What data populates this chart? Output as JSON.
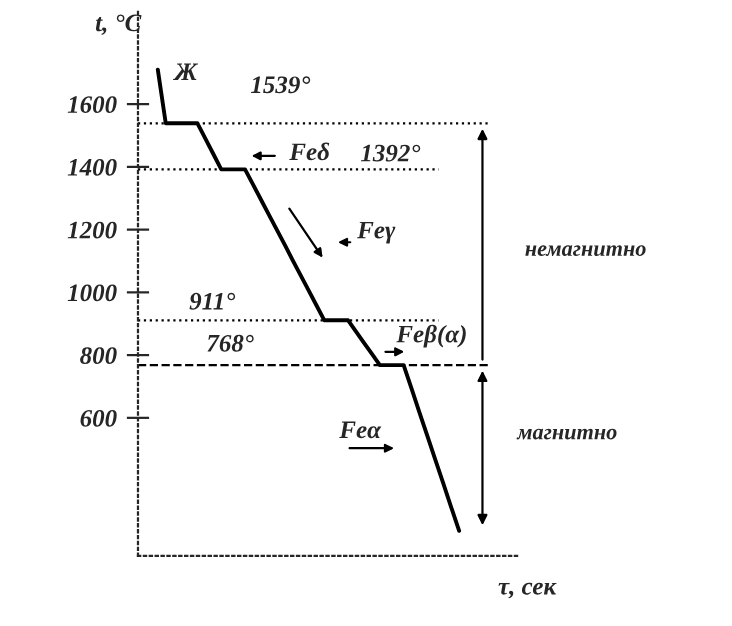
{
  "chart_data": {
    "type": "line",
    "ylabel": "t, °C",
    "xlabel": "τ, сек",
    "categories": [
      null,
      null,
      null,
      null,
      null,
      null,
      null,
      null,
      null,
      null,
      null,
      null,
      null,
      null,
      null,
      null,
      null,
      null,
      null,
      null,
      null,
      null,
      null,
      null,
      null,
      null,
      null,
      null,
      null,
      null,
      null,
      null,
      null,
      null,
      null,
      null,
      null,
      null,
      null,
      null,
      null,
      null,
      null,
      null,
      null,
      null,
      null,
      null
    ],
    "series": [
      {
        "color": "#000000",
        "values": [
          null,
          null,
          1710,
          1539,
          1539,
          1539,
          1539,
          1539,
          1490,
          1441,
          1392,
          1392,
          1392,
          1392,
          1344,
          1296,
          1248,
          1200,
          1152,
          1103,
          1055,
          1007,
          959,
          911,
          911,
          911,
          911,
          875,
          839,
          804,
          768,
          768,
          768,
          768,
          693,
          617,
          542,
          466,
          391,
          315,
          240,
          null,
          null,
          null,
          null,
          null,
          null,
          null
        ]
      }
    ],
    "ylim": [
      160,
      1900
    ],
    "yticks": [
      600,
      800,
      1000,
      1200,
      1400,
      1600
    ],
    "tick_labels": "y",
    "grid": false,
    "marker": "none",
    "line_style": "solid",
    "ref_lines": [
      {
        "axis": "y",
        "value": 1539,
        "label": "1539°",
        "line_style": "dotted"
      },
      {
        "axis": "y",
        "value": 1392,
        "label": "1392°",
        "line_style": "dotted"
      },
      {
        "axis": "y",
        "value": 911,
        "label": "911°",
        "line_style": "dotted"
      },
      {
        "axis": "y",
        "value": 768,
        "label": "768°",
        "line_style": "dashed"
      }
    ],
    "annotations": [
      "Ж",
      "Feδ",
      "Feγ",
      "Feβ(α)",
      "Feα",
      "немагнитно",
      "магнитно"
    ]
  }
}
